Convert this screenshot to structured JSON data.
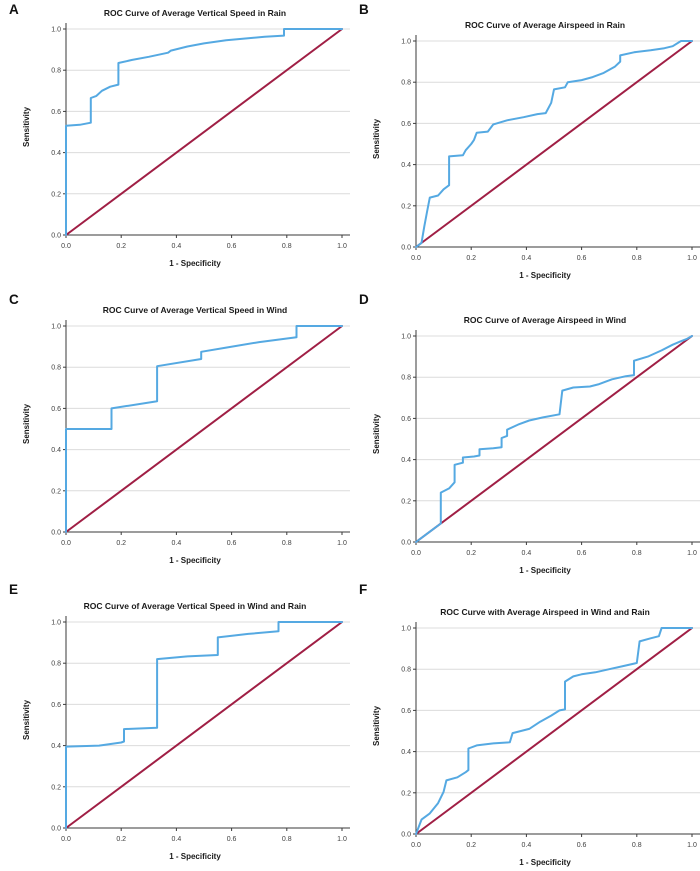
{
  "figure": {
    "background": "#ffffff",
    "layout": "2x3-grid-of-roc-panels"
  },
  "colors": {
    "curve": "#55a9e2",
    "reference": "#a01f45",
    "gridline": "#dcdcdc",
    "axis": "#3a3a3a",
    "tick_label": "#3f3f3f",
    "title_text": "#1a1a1a"
  },
  "chart_data": [
    {
      "type": "line",
      "panel_label": "A",
      "title": "ROC Curve of Average Vertical Speed in Rain",
      "xlabel": "1 - Specificity",
      "ylabel": "Sensitivity",
      "xlim": [
        0,
        1
      ],
      "ylim": [
        0,
        1
      ],
      "grid": "horizontal",
      "legend": "none",
      "x_ticks": [
        0,
        0.2,
        0.4,
        0.6,
        0.8,
        1.0
      ],
      "y_ticks": [
        0,
        0.2,
        0.4,
        0.6,
        0.8,
        1.0
      ],
      "x_tick_labels": [
        "0.0",
        "0.2",
        "0.4",
        "0.6",
        "0.8",
        "1.0"
      ],
      "y_tick_labels": [
        "0.0",
        "0.2",
        "0.4",
        "0.6",
        "0.8",
        "1.0"
      ],
      "series": [
        {
          "name": "ROC curve",
          "color": "#55a9e2",
          "points": [
            [
              0,
              0
            ],
            [
              0,
              0.53
            ],
            [
              0.05,
              0.535
            ],
            [
              0.09,
              0.545
            ],
            [
              0.09,
              0.665
            ],
            [
              0.11,
              0.675
            ],
            [
              0.13,
              0.7
            ],
            [
              0.16,
              0.72
            ],
            [
              0.19,
              0.73
            ],
            [
              0.19,
              0.835
            ],
            [
              0.24,
              0.85
            ],
            [
              0.3,
              0.865
            ],
            [
              0.37,
              0.885
            ],
            [
              0.38,
              0.895
            ],
            [
              0.44,
              0.915
            ],
            [
              0.5,
              0.93
            ],
            [
              0.58,
              0.945
            ],
            [
              0.66,
              0.955
            ],
            [
              0.72,
              0.962
            ],
            [
              0.79,
              0.968
            ],
            [
              0.79,
              1
            ],
            [
              1,
              1
            ]
          ]
        },
        {
          "name": "Reference line",
          "color": "#a01f45",
          "points": [
            [
              0,
              0
            ],
            [
              1,
              1
            ]
          ]
        }
      ]
    },
    {
      "type": "line",
      "panel_label": "B",
      "title": "ROC Curve of Average Airspeed in Rain",
      "xlabel": "1 - Specificity",
      "ylabel": "Sensitivity",
      "xlim": [
        0,
        1
      ],
      "ylim": [
        0,
        1
      ],
      "grid": "horizontal",
      "legend": "none",
      "x_ticks": [
        0,
        0.2,
        0.4,
        0.6,
        0.8,
        1.0
      ],
      "y_ticks": [
        0,
        0.2,
        0.4,
        0.6,
        0.8,
        1.0
      ],
      "x_tick_labels": [
        "0.0",
        "0.2",
        "0.4",
        "0.6",
        "0.8",
        "1.0"
      ],
      "y_tick_labels": [
        "0.0",
        "0.2",
        "0.4",
        "0.6",
        "0.8",
        "1.0"
      ],
      "series": [
        {
          "name": "ROC curve",
          "color": "#55a9e2",
          "points": [
            [
              0,
              0
            ],
            [
              0.02,
              0.02
            ],
            [
              0.03,
              0.1
            ],
            [
              0.04,
              0.17
            ],
            [
              0.05,
              0.24
            ],
            [
              0.08,
              0.25
            ],
            [
              0.1,
              0.28
            ],
            [
              0.12,
              0.3
            ],
            [
              0.12,
              0.44
            ],
            [
              0.17,
              0.445
            ],
            [
              0.18,
              0.47
            ],
            [
              0.2,
              0.5
            ],
            [
              0.21,
              0.52
            ],
            [
              0.22,
              0.555
            ],
            [
              0.26,
              0.56
            ],
            [
              0.28,
              0.595
            ],
            [
              0.33,
              0.615
            ],
            [
              0.39,
              0.63
            ],
            [
              0.44,
              0.645
            ],
            [
              0.47,
              0.65
            ],
            [
              0.49,
              0.7
            ],
            [
              0.5,
              0.765
            ],
            [
              0.54,
              0.775
            ],
            [
              0.55,
              0.8
            ],
            [
              0.6,
              0.81
            ],
            [
              0.64,
              0.825
            ],
            [
              0.68,
              0.845
            ],
            [
              0.72,
              0.875
            ],
            [
              0.74,
              0.9
            ],
            [
              0.74,
              0.93
            ],
            [
              0.79,
              0.945
            ],
            [
              0.85,
              0.955
            ],
            [
              0.9,
              0.965
            ],
            [
              0.93,
              0.975
            ],
            [
              0.96,
              1
            ],
            [
              1,
              1
            ]
          ]
        },
        {
          "name": "Reference line",
          "color": "#a01f45",
          "points": [
            [
              0,
              0
            ],
            [
              1,
              1
            ]
          ]
        }
      ]
    },
    {
      "type": "line",
      "panel_label": "C",
      "title": "ROC Curve of Average Vertical Speed in Wind",
      "xlabel": "1 - Specificity",
      "ylabel": "Sensitivity",
      "xlim": [
        0,
        1
      ],
      "ylim": [
        0,
        1
      ],
      "grid": "horizontal",
      "legend": "none",
      "x_ticks": [
        0,
        0.2,
        0.4,
        0.6,
        0.8,
        1.0
      ],
      "y_ticks": [
        0,
        0.2,
        0.4,
        0.6,
        0.8,
        1.0
      ],
      "x_tick_labels": [
        "0.0",
        "0.2",
        "0.4",
        "0.6",
        "0.8",
        "1.0"
      ],
      "y_tick_labels": [
        "0.0",
        "0.2",
        "0.4",
        "0.6",
        "0.8",
        "1.0"
      ],
      "series": [
        {
          "name": "ROC curve",
          "color": "#55a9e2",
          "points": [
            [
              0,
              0
            ],
            [
              0,
              0.5
            ],
            [
              0.165,
              0.5
            ],
            [
              0.165,
              0.6
            ],
            [
              0.33,
              0.635
            ],
            [
              0.33,
              0.805
            ],
            [
              0.49,
              0.84
            ],
            [
              0.49,
              0.875
            ],
            [
              0.58,
              0.895
            ],
            [
              0.7,
              0.922
            ],
            [
              0.835,
              0.945
            ],
            [
              0.835,
              1
            ],
            [
              1,
              1
            ]
          ]
        },
        {
          "name": "Reference line",
          "color": "#a01f45",
          "points": [
            [
              0,
              0
            ],
            [
              1,
              1
            ]
          ]
        }
      ]
    },
    {
      "type": "line",
      "panel_label": "D",
      "title": "ROC Curve of Average Airspeed in Wind",
      "xlabel": "1 - Specificity",
      "ylabel": "Sensitivity",
      "xlim": [
        0,
        1
      ],
      "ylim": [
        0,
        1
      ],
      "grid": "horizontal",
      "legend": "none",
      "x_ticks": [
        0,
        0.2,
        0.4,
        0.6,
        0.8,
        1.0
      ],
      "y_ticks": [
        0,
        0.2,
        0.4,
        0.6,
        0.8,
        1.0
      ],
      "x_tick_labels": [
        "0.0",
        "0.2",
        "0.4",
        "0.6",
        "0.8",
        "1.0"
      ],
      "y_tick_labels": [
        "0.0",
        "0.2",
        "0.4",
        "0.6",
        "0.8",
        "1.0"
      ],
      "series": [
        {
          "name": "ROC curve",
          "color": "#55a9e2",
          "points": [
            [
              0,
              0
            ],
            [
              0.05,
              0.05
            ],
            [
              0.09,
              0.09
            ],
            [
              0.09,
              0.24
            ],
            [
              0.12,
              0.26
            ],
            [
              0.14,
              0.29
            ],
            [
              0.14,
              0.375
            ],
            [
              0.17,
              0.385
            ],
            [
              0.17,
              0.41
            ],
            [
              0.21,
              0.415
            ],
            [
              0.23,
              0.42
            ],
            [
              0.23,
              0.45
            ],
            [
              0.28,
              0.455
            ],
            [
              0.31,
              0.46
            ],
            [
              0.31,
              0.505
            ],
            [
              0.33,
              0.515
            ],
            [
              0.33,
              0.545
            ],
            [
              0.37,
              0.57
            ],
            [
              0.41,
              0.59
            ],
            [
              0.46,
              0.605
            ],
            [
              0.52,
              0.62
            ],
            [
              0.53,
              0.735
            ],
            [
              0.57,
              0.75
            ],
            [
              0.63,
              0.755
            ],
            [
              0.66,
              0.765
            ],
            [
              0.71,
              0.79
            ],
            [
              0.76,
              0.805
            ],
            [
              0.79,
              0.81
            ],
            [
              0.79,
              0.88
            ],
            [
              0.84,
              0.9
            ],
            [
              0.89,
              0.93
            ],
            [
              0.93,
              0.958
            ],
            [
              0.96,
              0.975
            ],
            [
              0.98,
              0.985
            ],
            [
              1,
              1
            ]
          ]
        },
        {
          "name": "Reference line",
          "color": "#a01f45",
          "points": [
            [
              0,
              0
            ],
            [
              1,
              1
            ]
          ]
        }
      ]
    },
    {
      "type": "line",
      "panel_label": "E",
      "title": "ROC Curve of Average Vertical Speed in Wind and Rain",
      "xlabel": "1 - Specificity",
      "ylabel": "Sensitivity",
      "xlim": [
        0,
        1
      ],
      "ylim": [
        0,
        1
      ],
      "grid": "horizontal",
      "legend": "none",
      "x_ticks": [
        0,
        0.2,
        0.4,
        0.6,
        0.8,
        1.0
      ],
      "y_ticks": [
        0,
        0.2,
        0.4,
        0.6,
        0.8,
        1.0
      ],
      "x_tick_labels": [
        "0.0",
        "0.2",
        "0.4",
        "0.6",
        "0.8",
        "1.0"
      ],
      "y_tick_labels": [
        "0.0",
        "0.2",
        "0.4",
        "0.6",
        "0.8",
        "1.0"
      ],
      "series": [
        {
          "name": "ROC curve",
          "color": "#55a9e2",
          "points": [
            [
              0,
              0
            ],
            [
              0,
              0.395
            ],
            [
              0.12,
              0.4
            ],
            [
              0.2,
              0.415
            ],
            [
              0.21,
              0.42
            ],
            [
              0.21,
              0.48
            ],
            [
              0.33,
              0.487
            ],
            [
              0.33,
              0.82
            ],
            [
              0.44,
              0.833
            ],
            [
              0.55,
              0.84
            ],
            [
              0.55,
              0.925
            ],
            [
              0.66,
              0.942
            ],
            [
              0.77,
              0.955
            ],
            [
              0.77,
              1
            ],
            [
              1,
              1
            ]
          ]
        },
        {
          "name": "Reference line",
          "color": "#a01f45",
          "points": [
            [
              0,
              0
            ],
            [
              1,
              1
            ]
          ]
        }
      ]
    },
    {
      "type": "line",
      "panel_label": "F",
      "title": "ROC Curve with Average Airspeed in Wind and Rain",
      "xlabel": "1 - Specificity",
      "ylabel": "Sensitivity",
      "xlim": [
        0,
        1
      ],
      "ylim": [
        0,
        1
      ],
      "grid": "horizontal",
      "legend": "none",
      "x_ticks": [
        0,
        0.2,
        0.4,
        0.6,
        0.8,
        1.0
      ],
      "y_ticks": [
        0,
        0.2,
        0.4,
        0.6,
        0.8,
        1.0
      ],
      "x_tick_labels": [
        "0.0",
        "0.2",
        "0.4",
        "0.6",
        "0.8",
        "1.0"
      ],
      "y_tick_labels": [
        "0.0",
        "0.2",
        "0.4",
        "0.6",
        "0.8",
        "1.0"
      ],
      "series": [
        {
          "name": "ROC curve",
          "color": "#55a9e2",
          "points": [
            [
              0,
              0
            ],
            [
              0.02,
              0.07
            ],
            [
              0.05,
              0.1
            ],
            [
              0.08,
              0.15
            ],
            [
              0.1,
              0.205
            ],
            [
              0.11,
              0.26
            ],
            [
              0.15,
              0.275
            ],
            [
              0.18,
              0.3
            ],
            [
              0.19,
              0.31
            ],
            [
              0.19,
              0.415
            ],
            [
              0.22,
              0.43
            ],
            [
              0.28,
              0.44
            ],
            [
              0.34,
              0.445
            ],
            [
              0.35,
              0.49
            ],
            [
              0.38,
              0.5
            ],
            [
              0.41,
              0.51
            ],
            [
              0.45,
              0.545
            ],
            [
              0.49,
              0.575
            ],
            [
              0.52,
              0.6
            ],
            [
              0.54,
              0.605
            ],
            [
              0.54,
              0.74
            ],
            [
              0.57,
              0.765
            ],
            [
              0.6,
              0.775
            ],
            [
              0.65,
              0.785
            ],
            [
              0.7,
              0.8
            ],
            [
              0.75,
              0.815
            ],
            [
              0.8,
              0.83
            ],
            [
              0.81,
              0.935
            ],
            [
              0.85,
              0.95
            ],
            [
              0.88,
              0.96
            ],
            [
              0.89,
              1
            ],
            [
              1,
              1
            ]
          ]
        },
        {
          "name": "Reference line",
          "color": "#a01f45",
          "points": [
            [
              0,
              0
            ],
            [
              1,
              1
            ]
          ]
        }
      ]
    }
  ]
}
